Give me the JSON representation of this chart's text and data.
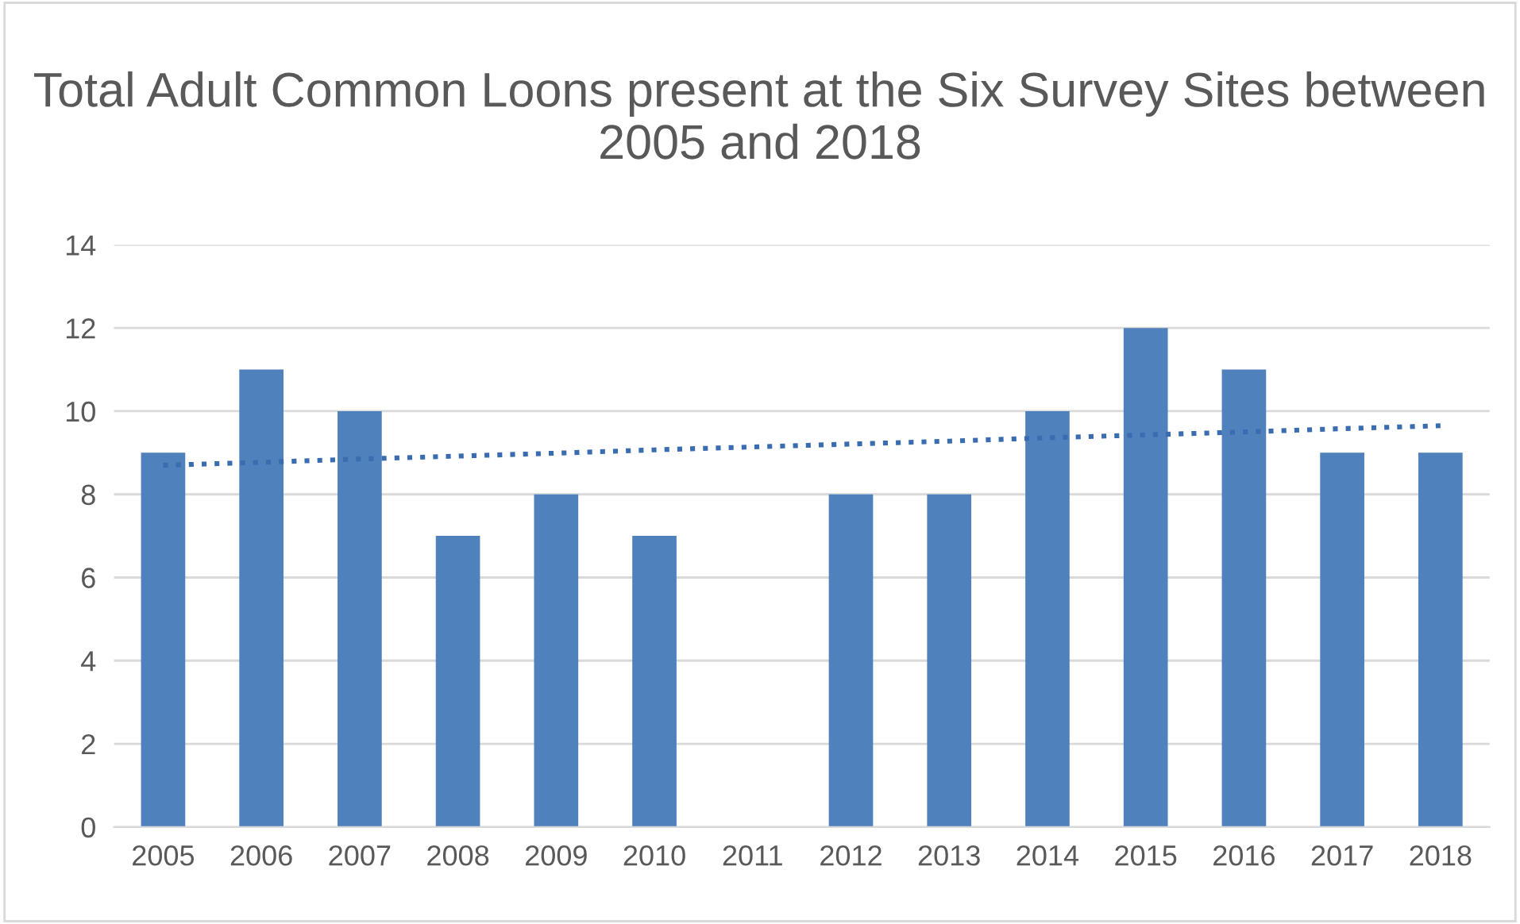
{
  "chart_data": {
    "type": "bar",
    "title": "Total Adult Common Loons present at the Six Survey Sites between 2005 and 2018",
    "categories": [
      "2005",
      "2006",
      "2007",
      "2008",
      "2009",
      "2010",
      "2011",
      "2012",
      "2013",
      "2014",
      "2015",
      "2016",
      "2017",
      "2018"
    ],
    "series": [
      {
        "color": "#4f81bd",
        "values": [
          9,
          11,
          10,
          7,
          8,
          7,
          null,
          8,
          8,
          10,
          12,
          11,
          9,
          9
        ]
      },
      {
        "type": "line",
        "color": "#3a6cb0",
        "line_style": "dotted",
        "values": [
          8.7,
          8.77,
          8.85,
          8.92,
          8.99,
          9.07,
          9.14,
          9.21,
          9.28,
          9.36,
          9.43,
          9.5,
          9.58,
          9.65
        ]
      }
    ],
    "ylim": [
      0,
      14
    ],
    "yticks": [
      0,
      2,
      4,
      6,
      8,
      10,
      12,
      14
    ],
    "grid": "y",
    "legend": false
  }
}
